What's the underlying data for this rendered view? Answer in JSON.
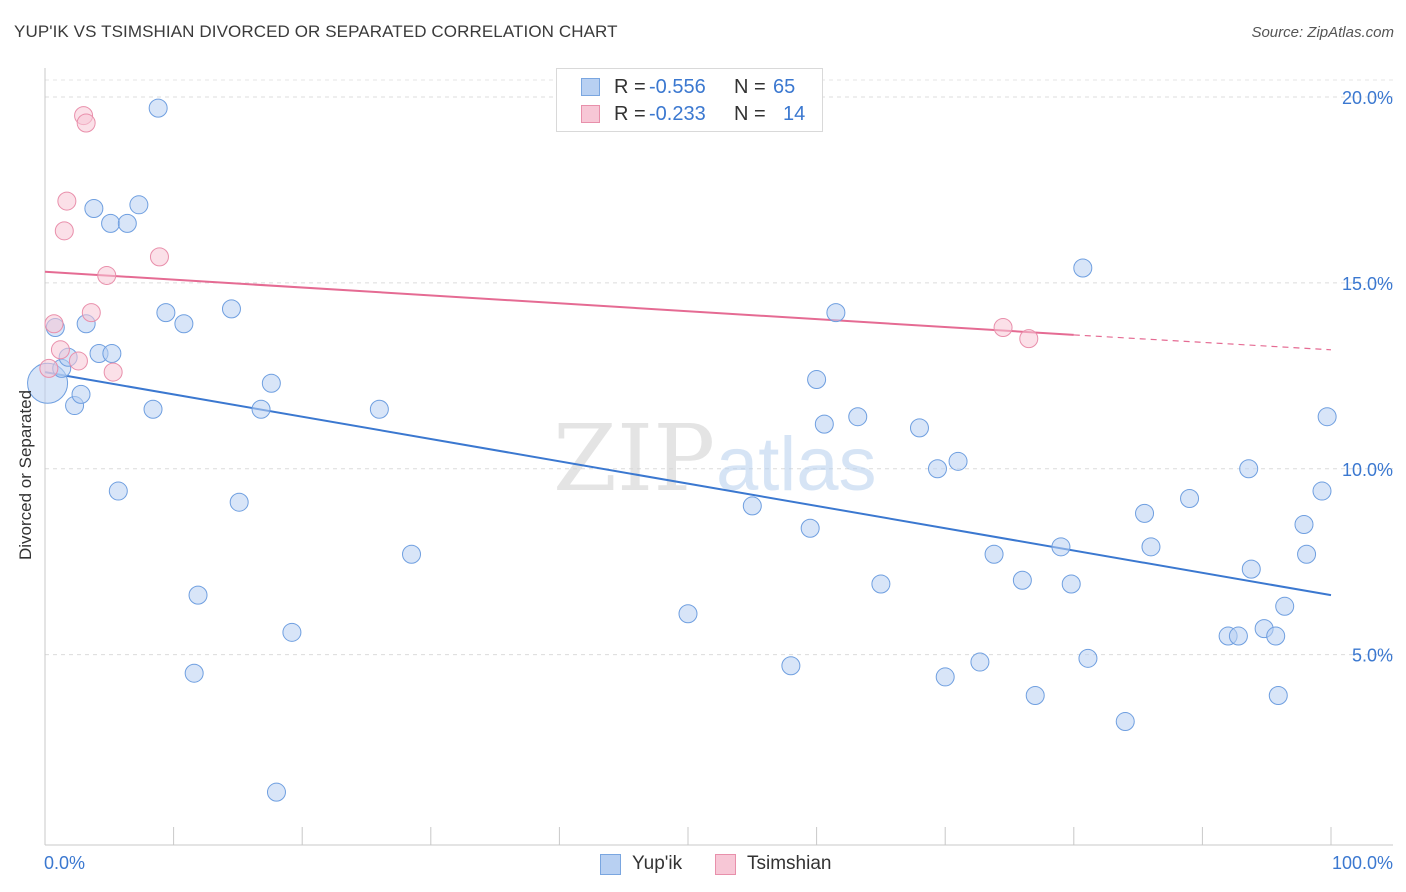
{
  "header": {
    "title": "YUP'IK VS TSIMSHIAN DIVORCED OR SEPARATED CORRELATION CHART",
    "source": "Source: ZipAtlas.com"
  },
  "watermark": {
    "zip": "ZIP",
    "atlas": "atlas"
  },
  "legend": {
    "rows": [
      {
        "r_label": "R =",
        "r_value": "-0.556",
        "n_label": "N =",
        "n_value": "65",
        "fill": "#b8d0f2",
        "stroke": "#7aa6e0"
      },
      {
        "r_label": "R =",
        "r_value": "-0.233",
        "n_label": "N =",
        "n_value": "14",
        "fill": "#f7c7d6",
        "stroke": "#e890ab"
      }
    ]
  },
  "bottom_legend": {
    "items": [
      {
        "label": "Yup'ik",
        "fill": "#b8d0f2",
        "stroke": "#7aa6e0"
      },
      {
        "label": "Tsimshian",
        "fill": "#f7c7d6",
        "stroke": "#e890ab"
      }
    ]
  },
  "chart_data": {
    "type": "scatter",
    "title": "YUP'IK VS TSIMSHIAN DIVORCED OR SEPARATED CORRELATION CHART",
    "ylabel": "Divorced or Separated",
    "xlabel": "",
    "xlim": [
      0,
      100
    ],
    "ylim": [
      0,
      20
    ],
    "x_tick_labels": [
      "0.0%",
      "100.0%"
    ],
    "y_ticks": [
      5,
      10,
      15,
      20
    ],
    "y_tick_labels": [
      "5.0%",
      "10.0%",
      "15.0%",
      "20.0%"
    ],
    "grid": true,
    "legend_position": "top-center",
    "colors": {
      "yupik": "#3b78d0",
      "tsimshian": "#e56b93",
      "tick_label": "#3b78d0"
    },
    "series": [
      {
        "name": "Yup'ik",
        "r": -0.556,
        "n": 65,
        "trend": {
          "x0": 0,
          "y0": 12.6,
          "x1": 100,
          "y1": 6.6
        },
        "points": [
          [
            0.2,
            12.3
          ],
          [
            0.8,
            13.8
          ],
          [
            1.3,
            12.7
          ],
          [
            1.8,
            13.0
          ],
          [
            2.3,
            11.7
          ],
          [
            2.8,
            12.0
          ],
          [
            3.2,
            13.9
          ],
          [
            3.8,
            17.0
          ],
          [
            4.2,
            13.1
          ],
          [
            5.1,
            16.6
          ],
          [
            5.2,
            13.1
          ],
          [
            5.7,
            9.4
          ],
          [
            6.4,
            16.6
          ],
          [
            7.3,
            17.1
          ],
          [
            8.4,
            11.6
          ],
          [
            8.8,
            19.7
          ],
          [
            9.4,
            14.2
          ],
          [
            10.8,
            13.9
          ],
          [
            11.6,
            4.5
          ],
          [
            11.9,
            6.6
          ],
          [
            14.5,
            14.3
          ],
          [
            15.1,
            9.1
          ],
          [
            16.8,
            11.6
          ],
          [
            17.6,
            12.3
          ],
          [
            18.0,
            1.3
          ],
          [
            19.2,
            5.6
          ],
          [
            26.0,
            11.6
          ],
          [
            28.5,
            7.7
          ],
          [
            50.0,
            6.1
          ],
          [
            55.0,
            9.0
          ],
          [
            58.0,
            4.7
          ],
          [
            59.5,
            8.4
          ],
          [
            60.0,
            12.4
          ],
          [
            60.6,
            11.2
          ],
          [
            61.5,
            14.2
          ],
          [
            63.2,
            11.4
          ],
          [
            65.0,
            6.9
          ],
          [
            68.0,
            11.1
          ],
          [
            69.4,
            10.0
          ],
          [
            70.0,
            4.4
          ],
          [
            71.0,
            10.2
          ],
          [
            72.7,
            4.8
          ],
          [
            73.8,
            7.7
          ],
          [
            76.0,
            7.0
          ],
          [
            77.0,
            3.9
          ],
          [
            79.0,
            7.9
          ],
          [
            79.8,
            6.9
          ],
          [
            80.7,
            15.4
          ],
          [
            81.1,
            4.9
          ],
          [
            84.0,
            3.2
          ],
          [
            85.5,
            8.8
          ],
          [
            86.0,
            7.9
          ],
          [
            89.0,
            9.2
          ],
          [
            92.0,
            5.5
          ],
          [
            92.8,
            5.5
          ],
          [
            93.6,
            10.0
          ],
          [
            93.8,
            7.3
          ],
          [
            94.8,
            5.7
          ],
          [
            95.7,
            5.5
          ],
          [
            95.9,
            3.9
          ],
          [
            96.4,
            6.3
          ],
          [
            97.9,
            8.5
          ],
          [
            98.1,
            7.7
          ],
          [
            99.3,
            9.4
          ],
          [
            99.7,
            11.4
          ]
        ]
      },
      {
        "name": "Tsimshian",
        "r": -0.233,
        "n": 14,
        "trend": {
          "x0": 0,
          "y0": 15.3,
          "x1": 80,
          "y1": 13.6,
          "dash_x1": 100,
          "dash_y1": 13.2
        },
        "points": [
          [
            0.3,
            12.7
          ],
          [
            0.7,
            13.9
          ],
          [
            1.2,
            13.2
          ],
          [
            1.5,
            16.4
          ],
          [
            1.7,
            17.2
          ],
          [
            2.6,
            12.9
          ],
          [
            3.0,
            19.5
          ],
          [
            3.2,
            19.3
          ],
          [
            3.6,
            14.2
          ],
          [
            4.8,
            15.2
          ],
          [
            5.3,
            12.6
          ],
          [
            8.9,
            15.7
          ],
          [
            74.5,
            13.8
          ],
          [
            76.5,
            13.5
          ]
        ]
      }
    ]
  }
}
